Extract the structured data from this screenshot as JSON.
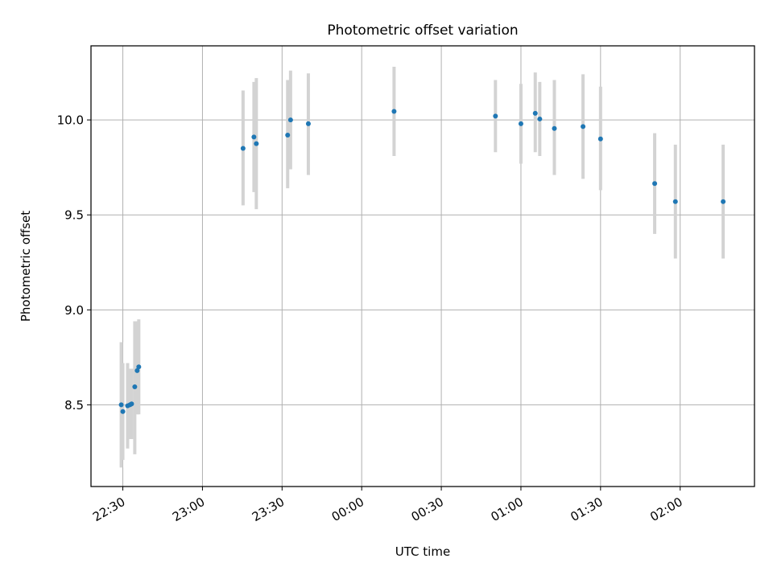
{
  "chart_data": {
    "type": "scatter",
    "title": "Photometric offset variation",
    "xlabel": "UTC time",
    "ylabel": "Photometric offset",
    "x_tick_labels": [
      "22:30",
      "23:00",
      "23:30",
      "00:00",
      "00:30",
      "01:00",
      "01:30",
      "02:00"
    ],
    "y_tick_labels": [
      "8.5",
      "9.0",
      "9.5",
      "10.0"
    ],
    "x_ticks": [
      "22:30",
      "23:00",
      "23:30",
      "00:00",
      "00:30",
      "01:00",
      "01:30",
      "02:00"
    ],
    "y_ticks": [
      8.5,
      9.0,
      9.5,
      10.0
    ],
    "xlim": [
      "22:18",
      "02:28"
    ],
    "ylim": [
      8.07,
      10.39
    ],
    "grid": true,
    "colors": {
      "point": "#1f77b4",
      "errorbar": "#d3d3d3",
      "grid": "#b0b0b0"
    },
    "series": [
      {
        "points": [
          {
            "x": "22:29:24",
            "y": 8.5,
            "err_low": 8.17,
            "err_high": 8.83
          },
          {
            "x": "22:30:00",
            "y": 8.465,
            "err_low": 8.21,
            "err_high": 8.72
          },
          {
            "x": "22:31:48",
            "y": 8.495,
            "err_low": 8.27,
            "err_high": 8.72
          },
          {
            "x": "22:32:42",
            "y": 8.5,
            "err_low": 8.32,
            "err_high": 8.69
          },
          {
            "x": "22:33:18",
            "y": 8.505,
            "err_low": 8.32,
            "err_high": 8.69
          },
          {
            "x": "22:34:30",
            "y": 8.595,
            "err_low": 8.24,
            "err_high": 8.94
          },
          {
            "x": "22:35:24",
            "y": 8.68,
            "err_low": 8.45,
            "err_high": 8.94
          },
          {
            "x": "22:36:00",
            "y": 8.7,
            "err_low": 8.45,
            "err_high": 8.95
          },
          {
            "x": "23:15:18",
            "y": 9.85,
            "err_low": 9.55,
            "err_high": 10.155
          },
          {
            "x": "23:19:24",
            "y": 9.91,
            "err_low": 9.62,
            "err_high": 10.2
          },
          {
            "x": "23:20:18",
            "y": 9.875,
            "err_low": 9.53,
            "err_high": 10.22
          },
          {
            "x": "23:32:06",
            "y": 9.92,
            "err_low": 9.64,
            "err_high": 10.21
          },
          {
            "x": "23:33:12",
            "y": 10.0,
            "err_low": 9.74,
            "err_high": 10.26
          },
          {
            "x": "23:39:54",
            "y": 9.98,
            "err_low": 9.71,
            "err_high": 10.245
          },
          {
            "x": "00:12:12",
            "y": 10.045,
            "err_low": 9.81,
            "err_high": 10.28
          },
          {
            "x": "00:50:24",
            "y": 10.02,
            "err_low": 9.83,
            "err_high": 10.21
          },
          {
            "x": "01:00:00",
            "y": 9.98,
            "err_low": 9.77,
            "err_high": 10.19
          },
          {
            "x": "01:05:24",
            "y": 10.035,
            "err_low": 9.83,
            "err_high": 10.25
          },
          {
            "x": "01:07:06",
            "y": 10.005,
            "err_low": 9.81,
            "err_high": 10.2
          },
          {
            "x": "01:12:36",
            "y": 9.955,
            "err_low": 9.71,
            "err_high": 10.21
          },
          {
            "x": "01:23:24",
            "y": 9.965,
            "err_low": 9.69,
            "err_high": 10.24
          },
          {
            "x": "01:30:00",
            "y": 9.9,
            "err_low": 9.63,
            "err_high": 10.175
          },
          {
            "x": "01:50:24",
            "y": 9.665,
            "err_low": 9.4,
            "err_high": 9.93
          },
          {
            "x": "01:58:12",
            "y": 9.57,
            "err_low": 9.27,
            "err_high": 9.87
          },
          {
            "x": "02:16:12",
            "y": 9.57,
            "err_low": 9.27,
            "err_high": 9.87
          }
        ]
      }
    ]
  }
}
